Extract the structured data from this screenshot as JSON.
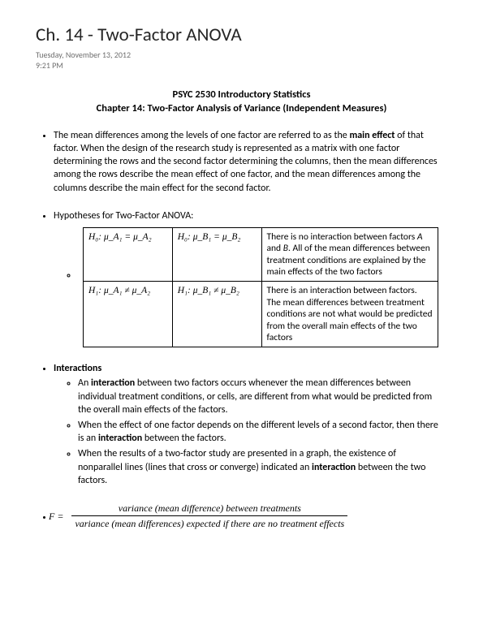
{
  "title": "Ch. 14 - Two-Factor ANOVA",
  "date": "Tuesday, November 13, 2012",
  "time": "9:21 PM",
  "subheader_line1": "PSYC 2530 Introductory Statistics",
  "subheader_line2": "Chapter 14: Two-Factor Analysis of Variance (Independent Measures)",
  "para1_a": "The mean differences among the levels of one factor are referred to as the ",
  "para1_bold": "main effect",
  "para1_b": " of that factor. When the design of the research study is represented as a matrix with one factor determining the rows and the second factor determining the columns, then the mean differences among the rows describe the mean effect of one factor, and the mean differences among the columns describe the main effect for the second factor.",
  "hyp_label": "Hypotheses for Two-Factor ANOVA:",
  "table": {
    "r1c1": "H₀: μ_A₁ = μ_A₂",
    "r1c2": "H₀: μ_B₁ = μ_B₂",
    "r1c3_a": "There is no interaction between factors ",
    "r1c3_i1": "A",
    "r1c3_b": " and ",
    "r1c3_i2": "B",
    "r1c3_c": ". All of the mean differences between treatment conditions are explained by the main effects of the two factors",
    "r2c1": "H₁: μ_A₁ ≠ μ_A₂",
    "r2c2": "H₁: μ_B₁ ≠ μ_B₂",
    "r2c3": "There is an interaction between factors. The mean differences between treatment conditions are not what would be predicted from the overall main effects of the two factors"
  },
  "interactions_heading": "Interactions",
  "int1_a": "An ",
  "int1_bold": "interaction",
  "int1_b": " between two factors occurs whenever the mean differences between individual treatment conditions, or cells, are different from what would be predicted from the overall main effects of the factors.",
  "int2_a": "When the effect of one factor depends on the different levels of a second factor, then there is an ",
  "int2_bold": "interaction",
  "int2_b": " between the factors.",
  "int3_a": "When the results of a two-factor study are presented in a graph, the existence of nonparallel lines (lines that cross or converge) indicated an ",
  "int3_bold": "interaction",
  "int3_b": " between the two factors.",
  "formula": {
    "lhs": "F =",
    "num": "variance (mean difference) between treatments",
    "den": "variance (mean differences) expected if there are no treatment effects"
  }
}
